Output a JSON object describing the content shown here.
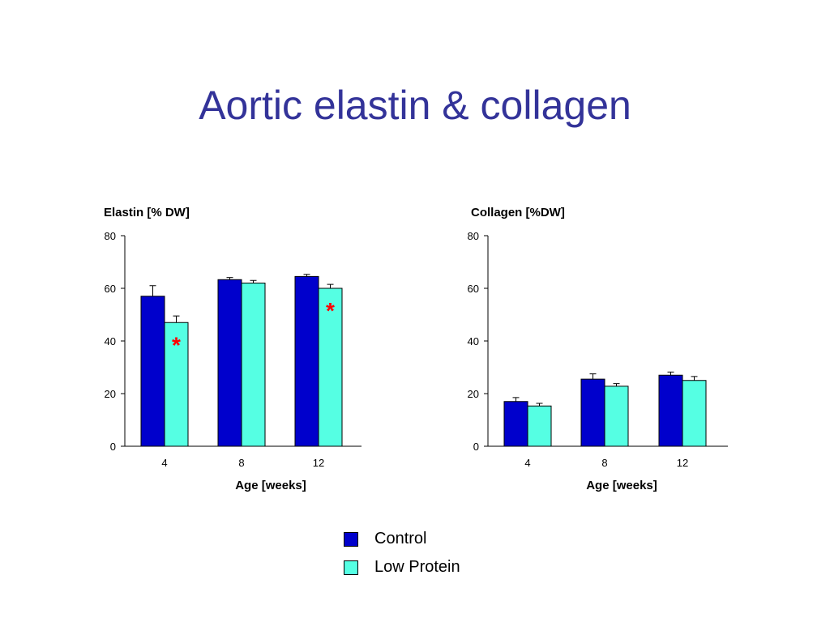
{
  "slide": {
    "title": "Aortic elastin & collagen"
  },
  "colors": {
    "control": "#0000CC",
    "low_protein": "#55FFE3",
    "significance": "#FF0000",
    "title": "#333399"
  },
  "legend": [
    {
      "label": "Control",
      "color": "#0000CC"
    },
    {
      "label": "Low Protein",
      "color": "#55FFE3"
    }
  ],
  "chart_data": [
    {
      "type": "bar",
      "title": "Elastin [% DW]",
      "xlabel": "Age [weeks]",
      "ylabel": "",
      "categories": [
        "4",
        "8",
        "12"
      ],
      "ylim": [
        0,
        80
      ],
      "yticks": [
        0,
        20,
        40,
        60,
        80
      ],
      "series": [
        {
          "name": "Control",
          "values": [
            57,
            63.3,
            64.5
          ],
          "errors": [
            4,
            0.8,
            0.8
          ]
        },
        {
          "name": "Low Protein",
          "values": [
            47,
            62,
            60
          ],
          "errors": [
            2.5,
            1,
            1.5
          ]
        }
      ],
      "significance": [
        {
          "label": "*",
          "category": "4",
          "series": "Low Protein"
        },
        {
          "label": "*",
          "category": "12",
          "series": "Low Protein"
        }
      ]
    },
    {
      "type": "bar",
      "title": "Collagen [%DW]",
      "xlabel": "Age [weeks]",
      "ylabel": "",
      "categories": [
        "4",
        "8",
        "12"
      ],
      "ylim": [
        0,
        80
      ],
      "yticks": [
        0,
        20,
        40,
        60,
        80
      ],
      "series": [
        {
          "name": "Control",
          "values": [
            17,
            25.5,
            27
          ],
          "errors": [
            1.5,
            2,
            1.2
          ]
        },
        {
          "name": "Low Protein",
          "values": [
            15.3,
            22.8,
            25
          ],
          "errors": [
            1,
            1,
            1.5
          ]
        }
      ],
      "significance": []
    }
  ]
}
